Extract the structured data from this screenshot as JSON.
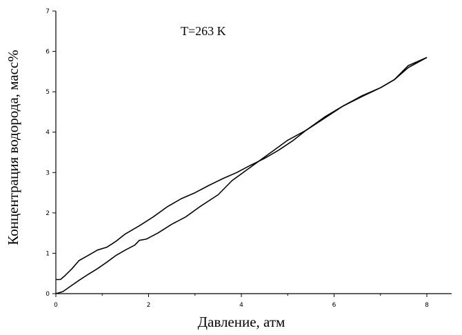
{
  "chart_data": {
    "type": "line",
    "title": "",
    "annotation": "T=263 K",
    "xlabel": "Давление, атм",
    "ylabel": "Концентрация водорода, масс%",
    "xlim": [
      0,
      8
    ],
    "ylim": [
      0,
      7
    ],
    "x_ticks": [
      0,
      2,
      4,
      6,
      8
    ],
    "y_ticks": [
      0,
      1,
      2,
      3,
      4,
      5,
      6,
      7
    ],
    "grid": false,
    "legend": "none",
    "line_color": "#000000",
    "series": [
      {
        "x": [
          0.0,
          0.15,
          0.3,
          0.5,
          0.7,
          0.9,
          1.1,
          1.3,
          1.5,
          1.7,
          1.8,
          1.95,
          2.2,
          2.5,
          2.8,
          3.1,
          3.5,
          3.8,
          4.1,
          4.4,
          4.7,
          5.0,
          5.4,
          5.8,
          6.2,
          6.6,
          7.0,
          7.3,
          7.6,
          8.0
        ],
        "y": [
          0.0,
          0.05,
          0.17,
          0.33,
          0.48,
          0.62,
          0.78,
          0.95,
          1.08,
          1.2,
          1.32,
          1.35,
          1.5,
          1.72,
          1.9,
          2.15,
          2.45,
          2.8,
          3.05,
          3.3,
          3.55,
          3.8,
          4.05,
          4.35,
          4.65,
          4.9,
          5.1,
          5.3,
          5.65,
          5.85
        ]
      },
      {
        "x": [
          0.0,
          0.1,
          0.2,
          0.35,
          0.5,
          0.7,
          0.9,
          1.1,
          1.3,
          1.5,
          1.8,
          2.1,
          2.4,
          2.7,
          3.0,
          3.3,
          3.6,
          3.9,
          4.2,
          4.5,
          4.8,
          5.1,
          5.4,
          5.8,
          6.2,
          6.6,
          7.0,
          7.3,
          7.6,
          8.0
        ],
        "y": [
          0.35,
          0.35,
          0.45,
          0.62,
          0.82,
          0.95,
          1.08,
          1.15,
          1.3,
          1.48,
          1.68,
          1.9,
          2.15,
          2.35,
          2.5,
          2.68,
          2.85,
          3.0,
          3.18,
          3.35,
          3.55,
          3.78,
          4.05,
          4.38,
          4.65,
          4.88,
          5.1,
          5.3,
          5.6,
          5.85
        ]
      }
    ]
  }
}
